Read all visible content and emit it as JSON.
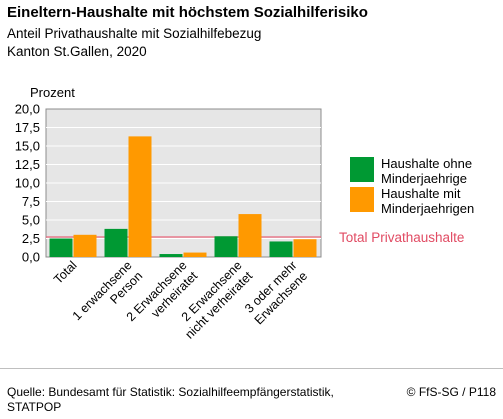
{
  "header": {
    "title": "Eineltern-Haushalte mit höchstem Sozialhilferisiko",
    "subtitle1": "Anteil Privathaushalte mit Sozialhilfebezug",
    "subtitle2": "Kanton St.Gallen, 2020"
  },
  "footer": {
    "source": "Quelle: Bundesamt für Statistik: Sozialhilfeempfängerstatistik, STATPOP",
    "credit": "© FfS-SG / P118"
  },
  "chart_data": {
    "type": "bar",
    "ylabel": "Prozent",
    "ylim": [
      0,
      20
    ],
    "yticks": [
      "0,0",
      "2,5",
      "5,0",
      "7,5",
      "10,0",
      "12,5",
      "15,0",
      "17,5",
      "20,0"
    ],
    "grid": true,
    "legend_position": "right",
    "categories": [
      [
        "Total"
      ],
      [
        "1 erwachsene",
        "Person"
      ],
      [
        "2 Erwachsene",
        "verheiratet"
      ],
      [
        "2 Erwachsene",
        "nicht verheiratet"
      ],
      [
        "3 oder mehr",
        "Erwachsene"
      ]
    ],
    "series": [
      {
        "name": "Haushalte ohne Minderjaehrige",
        "legend_lines": [
          "Haushalte ohne",
          "Minderjaehrige"
        ],
        "color": "#009933",
        "values": [
          2.5,
          3.8,
          0.4,
          2.8,
          2.1
        ]
      },
      {
        "name": "Haushalte mit Minderjaehrigen",
        "legend_lines": [
          "Haushalte mit",
          "Minderjaehrigen"
        ],
        "color": "#ff9900",
        "values": [
          3.0,
          16.3,
          0.6,
          5.8,
          2.4
        ]
      }
    ],
    "reference_line": {
      "label": "Total Privathaushalte",
      "value": 2.7,
      "color": "#e8657a"
    }
  }
}
